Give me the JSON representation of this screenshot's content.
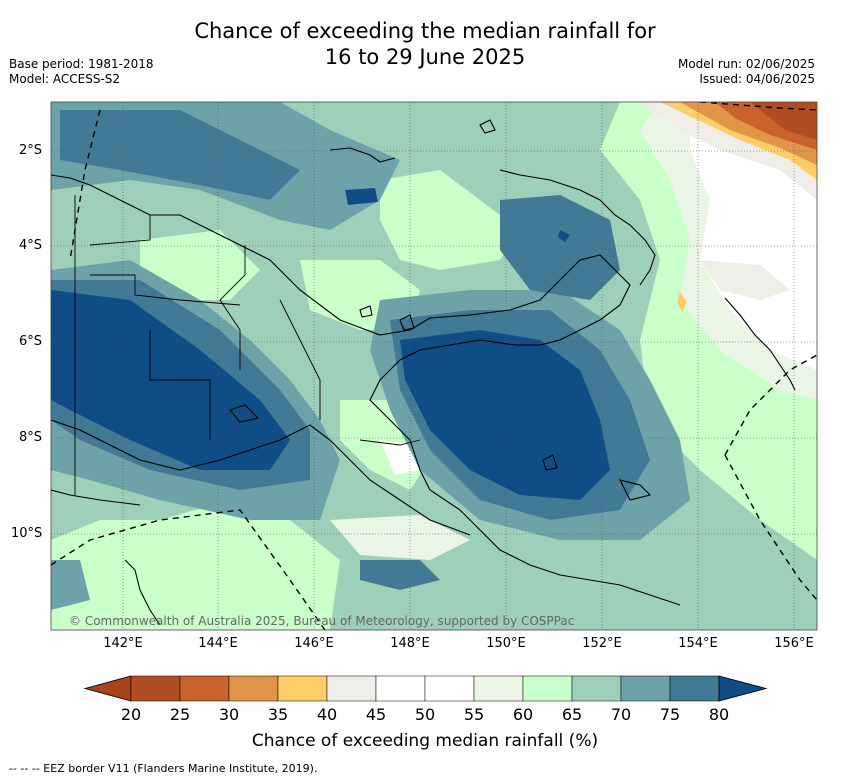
{
  "title": {
    "line1": "Chance of exceeding the median rainfall for",
    "line2": "16 to 29 June 2025"
  },
  "meta": {
    "base_period": "Base period: 1981-2018",
    "model": "Model: ACCESS-S2",
    "model_run": "Model run: 02/06/2025",
    "issued": "Issued: 04/06/2025"
  },
  "map": {
    "lat_ticks": [
      "2°S",
      "4°S",
      "6°S",
      "8°S",
      "10°S"
    ],
    "lon_ticks": [
      "142°E",
      "144°E",
      "146°E",
      "148°E",
      "150°E",
      "152°E",
      "154°E",
      "156°E"
    ],
    "copyright": "© Commonwealth of Australia 2025, Bureau of Meteorology, supported by COSPPac"
  },
  "colorbar": {
    "ticks": [
      "20",
      "25",
      "30",
      "35",
      "40",
      "45",
      "50",
      "55",
      "60",
      "65",
      "70",
      "75",
      "80"
    ],
    "colors": [
      "#a8431c",
      "#b24c22",
      "#c9622c",
      "#e09548",
      "#fdcd6a",
      "#efede8",
      "#ffffff",
      "#ffffff",
      "#eaf5e6",
      "#cbffc9",
      "#9ecfb8",
      "#6da3a8",
      "#427994",
      "#104d86"
    ],
    "label": "Chance of exceeding median rainfall (%)"
  },
  "footer": {
    "eez_note": "--  --  -- EEZ border V11 (Flanders Marine Institute, 2019)."
  }
}
